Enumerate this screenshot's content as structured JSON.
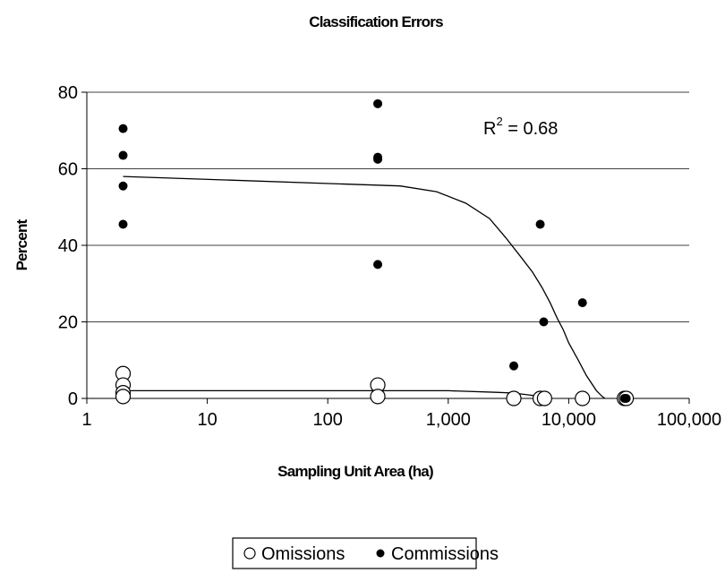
{
  "chart_data": {
    "type": "scatter",
    "title": "Classification Errors",
    "xlabel": "Sampling Unit Area (ha)",
    "ylabel": "Percent",
    "xscale": "log",
    "xlim": [
      1,
      100000
    ],
    "ylim": [
      0,
      80
    ],
    "x_ticks": [
      1,
      10,
      100,
      1000,
      10000,
      100000
    ],
    "x_tick_labels": [
      "1",
      "10",
      "100",
      "1,000",
      "10,000",
      "100,000"
    ],
    "y_ticks": [
      0,
      20,
      40,
      60,
      80
    ],
    "y_tick_labels": [
      "0",
      "20",
      "40",
      "60",
      "80"
    ],
    "grid": "horizontal",
    "legend_position": "bottom",
    "annotation": {
      "base": "R",
      "sup": "2",
      "rest": " = 0.68"
    },
    "series": [
      {
        "name": "Omissions",
        "marker": "hollow-circle",
        "points": [
          [
            2,
            6.5
          ],
          [
            2,
            3.5
          ],
          [
            2,
            1.5
          ],
          [
            2,
            0.5
          ],
          [
            260,
            3.5
          ],
          [
            260,
            0.5
          ],
          [
            3500,
            0
          ],
          [
            5800,
            0
          ],
          [
            6300,
            0
          ],
          [
            13000,
            0
          ],
          [
            29000,
            0
          ],
          [
            30000,
            0
          ]
        ],
        "trend": [
          [
            2,
            2
          ],
          [
            300,
            2
          ],
          [
            1000,
            2
          ],
          [
            2500,
            1.6
          ],
          [
            3500,
            1.4
          ],
          [
            5000,
            0.8
          ],
          [
            5800,
            0.5
          ]
        ]
      },
      {
        "name": "Commissions",
        "marker": "filled-circle",
        "points": [
          [
            2,
            70.5
          ],
          [
            2,
            63.5
          ],
          [
            2,
            55.5
          ],
          [
            2,
            45.5
          ],
          [
            260,
            77
          ],
          [
            260,
            63
          ],
          [
            260,
            62.5
          ],
          [
            260,
            35
          ],
          [
            3500,
            8.5
          ],
          [
            5800,
            45.5
          ],
          [
            6200,
            20
          ],
          [
            13000,
            25
          ],
          [
            29000,
            0
          ],
          [
            30000,
            0
          ]
        ],
        "trend": [
          [
            2,
            58
          ],
          [
            400,
            55.5
          ],
          [
            800,
            54
          ],
          [
            1400,
            51
          ],
          [
            2200,
            47
          ],
          [
            3000,
            42
          ],
          [
            4000,
            37
          ],
          [
            5000,
            33
          ],
          [
            6000,
            29
          ],
          [
            7000,
            25
          ],
          [
            8000,
            21
          ],
          [
            9000,
            18
          ],
          [
            10000,
            14.5
          ],
          [
            12000,
            10
          ],
          [
            14000,
            6
          ],
          [
            17000,
            2
          ],
          [
            19000,
            0.5
          ],
          [
            20000,
            0
          ]
        ]
      }
    ]
  }
}
